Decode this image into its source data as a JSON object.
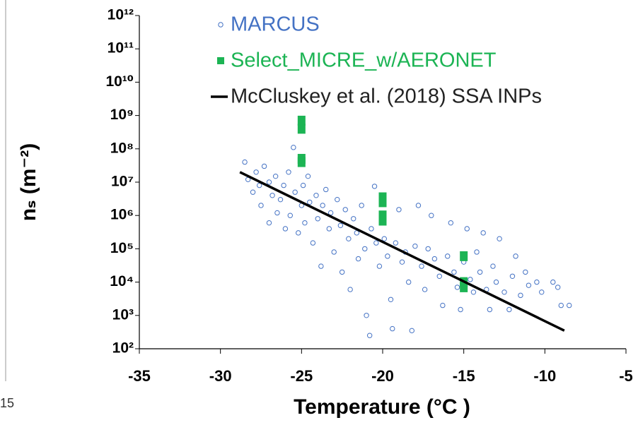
{
  "chart_data": {
    "type": "scatter",
    "y_label": "nₛ (m⁻²)",
    "x_label": "Temperature (°C )",
    "side_text": "15",
    "xlim": [
      -35,
      -5
    ],
    "xticks": [
      -35,
      -30,
      -25,
      -20,
      -15,
      -10,
      -5
    ],
    "ylim": [
      100,
      1000000000000
    ],
    "log_y": true,
    "yticks": [
      {
        "value": 100,
        "label": "10²"
      },
      {
        "value": 1000,
        "label": "10³"
      },
      {
        "value": 10000,
        "label": "10⁴"
      },
      {
        "value": 100000,
        "label": "10⁵"
      },
      {
        "value": 1000000,
        "label": "10⁶"
      },
      {
        "value": 10000000,
        "label": "10⁷"
      },
      {
        "value": 100000000,
        "label": "10⁸"
      },
      {
        "value": 1000000000,
        "label": "10⁹"
      },
      {
        "value": 10000000000,
        "label": "10¹⁰"
      },
      {
        "value": 100000000000,
        "label": "10¹¹"
      },
      {
        "value": 1000000000000,
        "label": "10¹²"
      }
    ],
    "grid": false,
    "legend": "top",
    "series": [
      {
        "name": "MARCUS",
        "marker": "circle",
        "color": "#4472c4",
        "x": [
          -28.5,
          -28.3,
          -28.0,
          -27.8,
          -27.6,
          -27.5,
          -27.3,
          -27.0,
          -27.0,
          -26.8,
          -26.6,
          -26.5,
          -26.3,
          -26.1,
          -26.0,
          -25.8,
          -25.7,
          -25.5,
          -25.4,
          -25.2,
          -25.0,
          -24.9,
          -24.8,
          -24.6,
          -24.5,
          -24.3,
          -24.1,
          -24.0,
          -23.8,
          -23.7,
          -23.5,
          -23.3,
          -23.2,
          -23.0,
          -22.8,
          -22.6,
          -22.5,
          -22.3,
          -22.1,
          -22.0,
          -21.8,
          -21.6,
          -21.5,
          -21.3,
          -21.1,
          -21.0,
          -20.8,
          -20.7,
          -20.5,
          -20.4,
          -20.2,
          -20.0,
          -19.9,
          -19.7,
          -19.5,
          -19.4,
          -19.2,
          -19.0,
          -18.8,
          -18.6,
          -18.4,
          -18.2,
          -18.0,
          -17.8,
          -17.6,
          -17.4,
          -17.2,
          -17.0,
          -16.8,
          -16.5,
          -16.3,
          -16.0,
          -15.8,
          -15.6,
          -15.4,
          -15.2,
          -15.0,
          -14.8,
          -14.6,
          -14.4,
          -14.2,
          -14.0,
          -13.8,
          -13.6,
          -13.4,
          -13.2,
          -13.0,
          -12.8,
          -12.5,
          -12.2,
          -12.0,
          -11.8,
          -11.5,
          -11.2,
          -11.0,
          -10.5,
          -10.2,
          -9.5,
          -9.2,
          -9.0,
          -8.5
        ],
        "values": [
          40000000.0,
          12000000.0,
          5000000.0,
          20000000.0,
          8000000.0,
          2000000.0,
          30000000.0,
          10000000.0,
          600000.0,
          4000000.0,
          15000000.0,
          1200000.0,
          3000000.0,
          8000000.0,
          400000.0,
          20000000.0,
          1000000.0,
          110000000.0,
          5000000.0,
          300000.0,
          2000000.0,
          8000000.0,
          600000.0,
          15000000.0,
          2500000.0,
          150000.0,
          4000000.0,
          800000.0,
          30000.0,
          2000000.0,
          6000000.0,
          400000.0,
          1200000.0,
          80000.0,
          3000000.0,
          500000.0,
          20000.0,
          1500000.0,
          200000.0,
          6000.0,
          800000.0,
          300000.0,
          50000.0,
          2000000.0,
          100000.0,
          1000.0,
          250.0,
          400000.0,
          7500000.0,
          150000.0,
          30000.0,
          4000000.0,
          200000.0,
          60000.0,
          3000.0,
          400.0,
          150000.0,
          1500000.0,
          40000.0,
          80000.0,
          10000.0,
          350.0,
          120000.0,
          2000000.0,
          30000.0,
          6000.0,
          100000.0,
          1000000.0,
          50000.0,
          15000.0,
          2000.0,
          60000.0,
          600000.0,
          20000.0,
          7000.0,
          1500.0,
          40000.0,
          400000.0,
          12000.0,
          5000.0,
          80000.0,
          20000.0,
          300000.0,
          6000.0,
          1500.0,
          30000.0,
          10000.0,
          200000.0,
          5000.0,
          1500.0,
          15000.0,
          60000.0,
          4000.0,
          20000.0,
          8000.0,
          10000.0,
          5000.0,
          10000.0,
          7000.0,
          2000.0,
          2000.0
        ]
      },
      {
        "name": "Select_MICRE_w/AERONET",
        "marker": "square",
        "color": "#1cb454",
        "x": [
          -25,
          -25,
          -25,
          -25,
          -20,
          -20,
          -20,
          -20,
          -15,
          -15,
          -15
        ],
        "values": [
          700000000.0,
          400000000.0,
          50000000.0,
          40000000.0,
          3500000.0,
          2500000.0,
          1000000.0,
          700000.0,
          60000.0,
          10000.0,
          7000.0
        ]
      },
      {
        "name": "McCluskey et al. (2018) SSA INPs",
        "marker": "line",
        "color": "#000000",
        "x": [
          -28.8,
          -8.8
        ],
        "values": [
          20000000.0,
          350
        ]
      }
    ]
  }
}
